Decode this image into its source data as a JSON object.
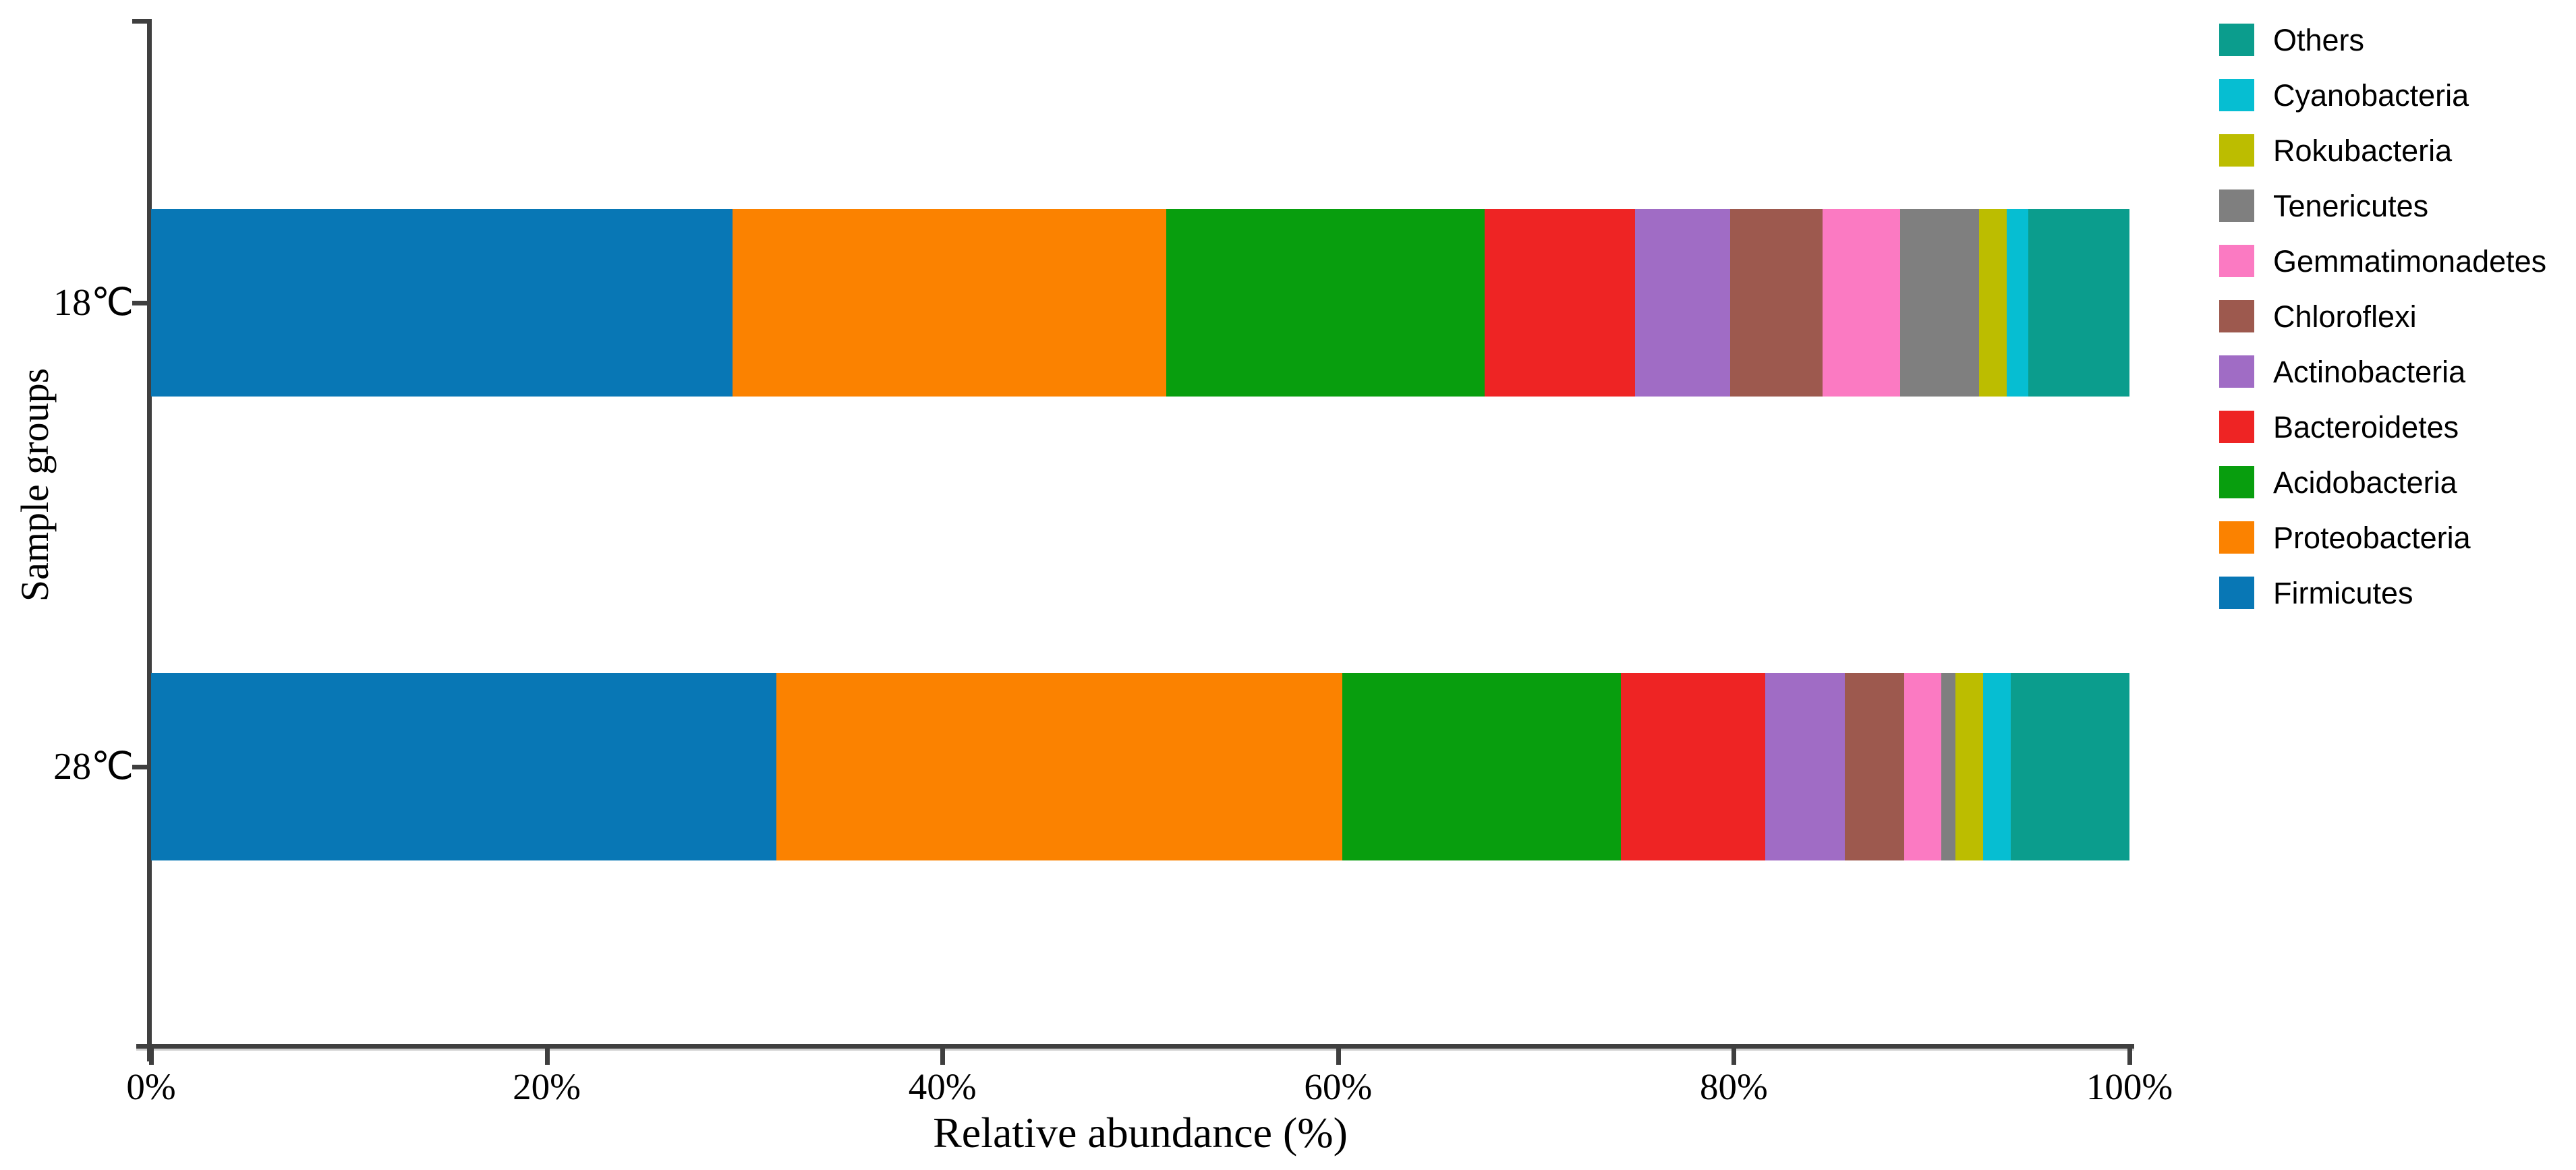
{
  "figure": {
    "background": "#ffffff",
    "axis_color": "#3f3f3f",
    "text_color": "#000000"
  },
  "chart_data": {
    "type": "bar",
    "orientation": "horizontal",
    "stacked": true,
    "title": "",
    "xlabel": "Relative abundance (%)",
    "ylabel": "Sample groups",
    "categories": [
      "18℃",
      "28℃"
    ],
    "x_ticks": [
      "0%",
      "20%",
      "40%",
      "60%",
      "80%",
      "100%"
    ],
    "xlim": [
      0,
      100
    ],
    "grid": false,
    "legend_position": "right",
    "legend_order_top_to_bottom": [
      "Others",
      "Cyanobacteria",
      "Rokubacteria",
      "Tenericutes",
      "Gemmatimonadetes",
      "Chloroflexi",
      "Actinobacteria",
      "Bacteroidetes",
      "Acidobacteria",
      "Proteobacteria",
      "Firmicutes"
    ],
    "series": [
      {
        "name": "Firmicutes",
        "color": "#0877b5",
        "values": [
          29.4,
          31.6
        ]
      },
      {
        "name": "Proteobacteria",
        "color": "#fb8200",
        "values": [
          21.9,
          28.6
        ]
      },
      {
        "name": "Acidobacteria",
        "color": "#089e0e",
        "values": [
          16.1,
          14.1
        ]
      },
      {
        "name": "Bacteroidetes",
        "color": "#ee2424",
        "values": [
          7.6,
          7.3
        ]
      },
      {
        "name": "Actinobacteria",
        "color": "#a06cc5",
        "values": [
          4.8,
          4.0
        ]
      },
      {
        "name": "Chloroflexi",
        "color": "#9d594e",
        "values": [
          4.7,
          3.0
        ]
      },
      {
        "name": "Gemmatimonadetes",
        "color": "#fb7ac2",
        "values": [
          3.9,
          1.9
        ]
      },
      {
        "name": "Tenericutes",
        "color": "#7f7f7f",
        "values": [
          4.0,
          0.7
        ]
      },
      {
        "name": "Rokubacteria",
        "color": "#bcbd00",
        "values": [
          1.4,
          1.4
        ]
      },
      {
        "name": "Cyanobacteria",
        "color": "#06bed2",
        "values": [
          1.1,
          1.4
        ]
      },
      {
        "name": "Others",
        "color": "#0b9d8d",
        "values": [
          5.1,
          6.0
        ]
      }
    ]
  }
}
